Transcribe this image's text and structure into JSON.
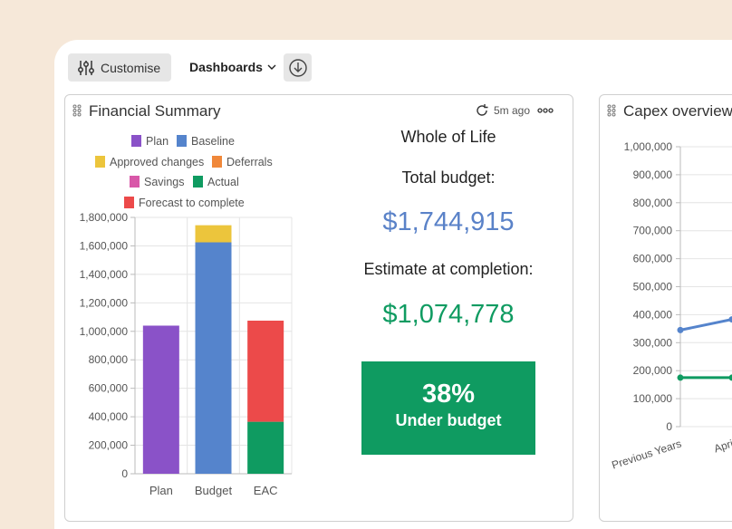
{
  "toolbar": {
    "customise_label": "Customise",
    "dashboards_label": "Dashboards"
  },
  "financial_summary": {
    "title": "Financial Summary",
    "updated": "5m ago",
    "whole_of_life": "Whole of Life",
    "total_budget_label": "Total budget:",
    "total_budget_value": "$1,744,915",
    "estimate_label": "Estimate at completion:",
    "estimate_value": "$1,074,778",
    "variance_pct": "38%",
    "variance_label": "Under budget",
    "colors": {
      "budget_value": "#5a82c8",
      "estimate_value": "#0f9b61",
      "badge": "#0f9b61"
    }
  },
  "capex": {
    "title": "Capex overview"
  },
  "chart_data": [
    {
      "type": "bar",
      "stacked": true,
      "categories": [
        "Plan",
        "Budget",
        "EAC"
      ],
      "series": [
        {
          "name": "Plan",
          "color": "#8a52c8",
          "values": [
            1040000,
            0,
            0
          ]
        },
        {
          "name": "Baseline",
          "color": "#5584cc",
          "values": [
            0,
            1625000,
            0
          ]
        },
        {
          "name": "Approved changes",
          "color": "#ecc53c",
          "values": [
            0,
            120000,
            0
          ]
        },
        {
          "name": "Deferrals",
          "color": "#f0883a",
          "values": [
            0,
            0,
            0
          ]
        },
        {
          "name": "Savings",
          "color": "#d857a8",
          "values": [
            0,
            0,
            0
          ]
        },
        {
          "name": "Actual",
          "color": "#0f9b61",
          "values": [
            0,
            0,
            365000
          ]
        },
        {
          "name": "Forecast to complete",
          "color": "#ec4a4a",
          "values": [
            0,
            0,
            710000
          ]
        }
      ],
      "y_ticks": [
        "0",
        "200,000",
        "400,000",
        "600,000",
        "800,000",
        "1,000,000",
        "1,200,000",
        "1,400,000",
        "1,600,000",
        "1,800,000"
      ],
      "ylim": [
        0,
        1800000
      ],
      "legend_position": "top",
      "grid": true
    },
    {
      "type": "line",
      "categories": [
        "Previous Years",
        "Apri"
      ],
      "series": [
        {
          "color": "#5584cc",
          "values": [
            345000,
            383000
          ]
        },
        {
          "color": "#0f9b61",
          "values": [
            175000,
            175000
          ]
        }
      ],
      "y_ticks": [
        "0",
        "100,000",
        "200,000",
        "300,000",
        "400,000",
        "500,000",
        "600,000",
        "700,000",
        "800,000",
        "900,000",
        "1,000,000"
      ],
      "ylim": [
        0,
        1000000
      ],
      "grid": true
    }
  ]
}
